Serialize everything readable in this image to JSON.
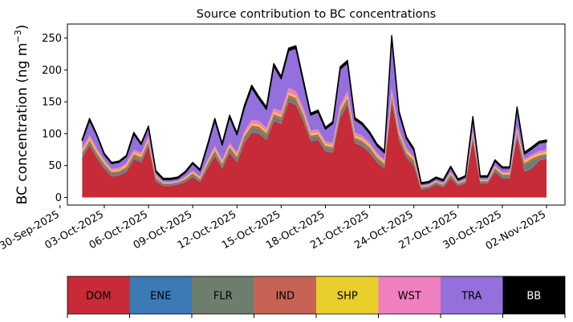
{
  "chart_data": {
    "type": "area",
    "stacked": true,
    "title": "Source contribution to BC concentrations",
    "ylabel_main": "BC concentration (ng m",
    "ylabel_exp": "−3",
    "ylabel_end": ")",
    "xlabel": "",
    "ylim": [
      -12,
      272
    ],
    "yticks": [
      0,
      50,
      100,
      150,
      200,
      250
    ],
    "xlim": [
      "2025-09-30T12:00",
      "2025-11-03T06:00"
    ],
    "xticks": [
      "30-Sep-2025",
      "03-Oct-2025",
      "06-Oct-2025",
      "09-Oct-2025",
      "12-Oct-2025",
      "15-Oct-2025",
      "18-Oct-2025",
      "21-Oct-2025",
      "24-Oct-2025",
      "27-Oct-2025",
      "30-Oct-2025",
      "02-Nov-2025"
    ],
    "grid": false,
    "x": [
      "2025-10-01T12:00",
      "2025-10-02T00:00",
      "2025-10-02T12:00",
      "2025-10-03T00:00",
      "2025-10-03T12:00",
      "2025-10-04T00:00",
      "2025-10-04T12:00",
      "2025-10-05T00:00",
      "2025-10-05T12:00",
      "2025-10-06T00:00",
      "2025-10-06T12:00",
      "2025-10-07T00:00",
      "2025-10-07T12:00",
      "2025-10-08T00:00",
      "2025-10-08T12:00",
      "2025-10-09T00:00",
      "2025-10-09T12:00",
      "2025-10-10T00:00",
      "2025-10-10T12:00",
      "2025-10-11T00:00",
      "2025-10-11T12:00",
      "2025-10-12T00:00",
      "2025-10-12T12:00",
      "2025-10-13T00:00",
      "2025-10-13T12:00",
      "2025-10-14T00:00",
      "2025-10-14T12:00",
      "2025-10-15T00:00",
      "2025-10-15T12:00",
      "2025-10-16T00:00",
      "2025-10-16T12:00",
      "2025-10-17T00:00",
      "2025-10-17T12:00",
      "2025-10-18T00:00",
      "2025-10-18T12:00",
      "2025-10-19T00:00",
      "2025-10-19T12:00",
      "2025-10-20T00:00",
      "2025-10-20T12:00",
      "2025-10-21T00:00",
      "2025-10-21T12:00",
      "2025-10-22T00:00",
      "2025-10-22T12:00",
      "2025-10-23T00:00",
      "2025-10-23T12:00",
      "2025-10-24T00:00",
      "2025-10-24T12:00",
      "2025-10-25T00:00",
      "2025-10-25T12:00",
      "2025-10-26T00:00",
      "2025-10-26T12:00",
      "2025-10-27T00:00",
      "2025-10-27T12:00",
      "2025-10-28T00:00",
      "2025-10-28T12:00",
      "2025-10-29T00:00",
      "2025-10-29T12:00",
      "2025-10-30T00:00",
      "2025-10-30T12:00",
      "2025-10-31T00:00",
      "2025-10-31T12:00",
      "2025-11-01T00:00",
      "2025-11-01T12:00",
      "2025-11-02T00:00"
    ],
    "series": [
      {
        "name": "DOM",
        "color": "#c62b37",
        "values": [
          62,
          82,
          62,
          45,
          33,
          34,
          40,
          60,
          55,
          80,
          25,
          18,
          18,
          20,
          24,
          32,
          24,
          45,
          65,
          45,
          70,
          55,
          85,
          102,
          100,
          90,
          120,
          115,
          150,
          145,
          120,
          88,
          90,
          72,
          70,
          125,
          145,
          85,
          80,
          70,
          55,
          45,
          150,
          90,
          62,
          50,
          12,
          14,
          20,
          16,
          30,
          18,
          22,
          90,
          22,
          22,
          40,
          30,
          30,
          95,
          40,
          45,
          58,
          60
        ]
      },
      {
        "name": "ENE",
        "color": "#3b7ab5",
        "values": [
          1,
          1,
          1,
          1,
          1,
          1,
          1,
          1,
          1,
          1,
          1,
          1,
          1,
          1,
          1,
          1,
          1,
          1,
          1,
          1,
          1,
          1,
          1,
          1,
          1,
          1,
          1,
          1,
          1,
          1,
          1,
          1,
          1,
          1,
          1,
          1,
          1,
          1,
          1,
          1,
          1,
          1,
          1,
          1,
          1,
          1,
          1,
          1,
          1,
          1,
          1,
          1,
          1,
          1,
          1,
          1,
          1,
          1,
          1,
          1,
          1,
          1,
          1,
          1
        ]
      },
      {
        "name": "FLR",
        "color": "#6e7e6e",
        "values": [
          4,
          4,
          4,
          4,
          4,
          4,
          4,
          4,
          4,
          4,
          3,
          2,
          2,
          2,
          2,
          3,
          2,
          4,
          5,
          4,
          5,
          5,
          6,
          6,
          6,
          6,
          6,
          6,
          6,
          6,
          6,
          5,
          5,
          5,
          5,
          6,
          6,
          5,
          5,
          5,
          4,
          4,
          6,
          5,
          4,
          4,
          2,
          2,
          2,
          2,
          3,
          2,
          2,
          4,
          2,
          2,
          3,
          3,
          3,
          4,
          10,
          12,
          4,
          4
        ]
      },
      {
        "name": "IND",
        "color": "#c76354",
        "values": [
          3,
          3,
          3,
          3,
          2,
          2,
          3,
          3,
          3,
          3,
          2,
          1,
          1,
          1,
          2,
          2,
          2,
          3,
          3,
          3,
          3,
          3,
          4,
          4,
          4,
          4,
          4,
          4,
          4,
          4,
          4,
          3,
          3,
          3,
          3,
          4,
          4,
          3,
          3,
          3,
          3,
          3,
          4,
          3,
          3,
          3,
          1,
          1,
          1,
          1,
          2,
          1,
          1,
          3,
          1,
          1,
          2,
          2,
          2,
          3,
          3,
          3,
          3,
          3
        ]
      },
      {
        "name": "SHP",
        "color": "#e8cf2c",
        "values": [
          3,
          3,
          3,
          3,
          2,
          2,
          3,
          3,
          3,
          3,
          2,
          1,
          1,
          1,
          2,
          2,
          2,
          3,
          3,
          3,
          3,
          3,
          3,
          3,
          3,
          3,
          3,
          3,
          3,
          3,
          3,
          3,
          3,
          3,
          3,
          3,
          3,
          3,
          3,
          3,
          3,
          3,
          3,
          3,
          3,
          3,
          1,
          1,
          1,
          1,
          2,
          1,
          1,
          3,
          1,
          1,
          2,
          2,
          2,
          3,
          3,
          3,
          3,
          3
        ]
      },
      {
        "name": "WST",
        "color": "#f07fbf",
        "values": [
          4,
          5,
          4,
          3,
          3,
          3,
          3,
          4,
          4,
          5,
          2,
          1,
          1,
          1,
          2,
          2,
          2,
          3,
          4,
          3,
          4,
          4,
          5,
          6,
          6,
          5,
          6,
          6,
          8,
          8,
          7,
          5,
          5,
          4,
          4,
          6,
          8,
          5,
          5,
          4,
          4,
          3,
          8,
          5,
          4,
          3,
          1,
          1,
          1,
          1,
          2,
          1,
          1,
          5,
          1,
          1,
          2,
          2,
          2,
          5,
          3,
          3,
          4,
          4
        ]
      },
      {
        "name": "TRA",
        "color": "#9370db",
        "values": [
          12,
          23,
          20,
          8,
          8,
          9,
          10,
          24,
          13,
          14,
          5,
          4,
          4,
          4,
          6,
          11,
          9,
          21,
          40,
          23,
          40,
          27,
          36,
          50,
          34,
          29,
          66,
          51,
          58,
          67,
          40,
          24,
          27,
          19,
          30,
          56,
          44,
          20,
          17,
          14,
          11,
          11,
          78,
          25,
          15,
          10,
          3,
          3,
          4,
          4,
          7,
          3,
          4,
          18,
          4,
          4,
          7,
          6,
          6,
          28,
          8,
          9,
          12,
          12
        ]
      },
      {
        "name": "BB",
        "color": "#000000",
        "values": [
          2,
          3,
          2,
          2,
          2,
          2,
          2,
          3,
          2,
          2,
          2,
          2,
          2,
          2,
          2,
          2,
          2,
          3,
          3,
          3,
          3,
          3,
          4,
          4,
          4,
          4,
          4,
          4,
          4,
          4,
          4,
          3,
          3,
          3,
          3,
          4,
          4,
          3,
          3,
          3,
          3,
          3,
          4,
          3,
          3,
          3,
          2,
          2,
          2,
          2,
          2,
          2,
          2,
          3,
          2,
          2,
          2,
          2,
          2,
          3,
          3,
          3,
          3,
          3
        ]
      }
    ],
    "legend_position": "below"
  }
}
